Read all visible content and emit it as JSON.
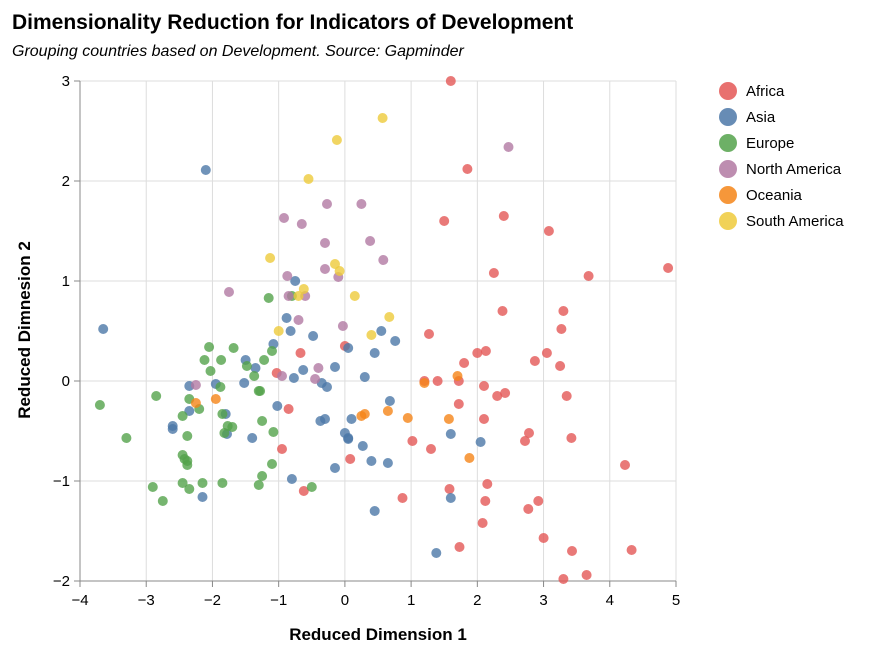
{
  "chart_data": {
    "type": "scatter",
    "title": "Dimensionality Reduction for Indicators of Development",
    "subtitle": "Grouping countries based on Development. Source: Gapminder",
    "xlabel": "Reduced Dimension 1",
    "ylabel": "Reduced Dimnesion 2",
    "xlim": [
      -4,
      5
    ],
    "ylim": [
      -2,
      3
    ],
    "x_ticks": [
      -4,
      -3,
      -2,
      -1,
      0,
      1,
      2,
      3,
      4,
      5
    ],
    "y_ticks": [
      -2,
      -1,
      0,
      1,
      2,
      3
    ],
    "x_tick_labels": [
      "−4",
      "−3",
      "−2",
      "−1",
      "0",
      "1",
      "2",
      "3",
      "4",
      "5"
    ],
    "y_tick_labels": [
      "−2",
      "−1",
      "0",
      "1",
      "2",
      "3"
    ],
    "grid": true,
    "legend_position": "top-right",
    "series": [
      {
        "name": "Africa",
        "color": "#e45756",
        "points": [
          [
            1.6,
            3.0
          ],
          [
            1.85,
            2.12
          ],
          [
            1.5,
            1.6
          ],
          [
            2.4,
            1.65
          ],
          [
            3.08,
            1.5
          ],
          [
            2.25,
            1.08
          ],
          [
            4.88,
            1.13
          ],
          [
            3.68,
            1.05
          ],
          [
            2.38,
            0.7
          ],
          [
            3.3,
            0.7
          ],
          [
            3.27,
            0.52
          ],
          [
            1.27,
            0.47
          ],
          [
            3.05,
            0.28
          ],
          [
            2.13,
            0.3
          ],
          [
            2.0,
            0.28
          ],
          [
            2.87,
            0.2
          ],
          [
            1.8,
            0.18
          ],
          [
            3.25,
            0.15
          ],
          [
            1.72,
            0.0
          ],
          [
            1.4,
            0.0
          ],
          [
            1.2,
            0.0
          ],
          [
            2.1,
            -0.05
          ],
          [
            2.42,
            -0.12
          ],
          [
            3.35,
            -0.15
          ],
          [
            2.3,
            -0.15
          ],
          [
            1.72,
            -0.23
          ],
          [
            2.1,
            -0.38
          ],
          [
            2.78,
            -0.52
          ],
          [
            2.72,
            -0.6
          ],
          [
            3.42,
            -0.57
          ],
          [
            1.02,
            -0.6
          ],
          [
            1.3,
            -0.68
          ],
          [
            4.23,
            -0.84
          ],
          [
            2.15,
            -1.03
          ],
          [
            1.58,
            -1.08
          ],
          [
            0.87,
            -1.17
          ],
          [
            2.12,
            -1.2
          ],
          [
            2.92,
            -1.2
          ],
          [
            2.77,
            -1.28
          ],
          [
            2.08,
            -1.42
          ],
          [
            3.0,
            -1.57
          ],
          [
            1.73,
            -1.66
          ],
          [
            3.43,
            -1.7
          ],
          [
            4.33,
            -1.69
          ],
          [
            3.65,
            -1.94
          ],
          [
            3.3,
            -1.98
          ],
          [
            0.0,
            0.35
          ],
          [
            -0.67,
            0.28
          ],
          [
            -1.03,
            0.08
          ],
          [
            -0.85,
            -0.28
          ],
          [
            -0.95,
            -0.68
          ],
          [
            0.08,
            -0.78
          ],
          [
            -0.62,
            -1.1
          ]
        ]
      },
      {
        "name": "Asia",
        "color": "#4c78a8",
        "points": [
          [
            -2.1,
            2.11
          ],
          [
            -3.65,
            0.52
          ],
          [
            -0.75,
            1.0
          ],
          [
            -0.88,
            0.63
          ],
          [
            -0.82,
            0.5
          ],
          [
            -1.08,
            0.37
          ],
          [
            0.05,
            0.33
          ],
          [
            0.55,
            0.5
          ],
          [
            0.76,
            0.4
          ],
          [
            0.45,
            0.28
          ],
          [
            -1.5,
            0.21
          ],
          [
            -1.35,
            0.13
          ],
          [
            -0.15,
            0.14
          ],
          [
            -0.63,
            0.11
          ],
          [
            0.3,
            0.04
          ],
          [
            -0.77,
            0.03
          ],
          [
            -0.35,
            -0.02
          ],
          [
            -1.95,
            -0.03
          ],
          [
            -2.35,
            -0.05
          ],
          [
            -1.52,
            -0.02
          ],
          [
            -0.27,
            -0.06
          ],
          [
            0.68,
            -0.2
          ],
          [
            -1.8,
            -0.33
          ],
          [
            -1.02,
            -0.25
          ],
          [
            -2.35,
            -0.3
          ],
          [
            0.1,
            -0.38
          ],
          [
            -0.3,
            -0.38
          ],
          [
            -0.37,
            -0.4
          ],
          [
            -2.6,
            -0.45
          ],
          [
            -2.6,
            -0.48
          ],
          [
            1.6,
            -0.53
          ],
          [
            0.0,
            -0.52
          ],
          [
            0.05,
            -0.57
          ],
          [
            2.05,
            -0.61
          ],
          [
            0.27,
            -0.65
          ],
          [
            -1.78,
            -0.53
          ],
          [
            0.05,
            -0.58
          ],
          [
            -1.4,
            -0.57
          ],
          [
            0.4,
            -0.8
          ],
          [
            0.65,
            -0.82
          ],
          [
            -0.15,
            -0.87
          ],
          [
            -0.8,
            -0.98
          ],
          [
            1.6,
            -1.17
          ],
          [
            -2.15,
            -1.16
          ],
          [
            0.45,
            -1.3
          ],
          [
            1.38,
            -1.72
          ],
          [
            -0.48,
            0.45
          ]
        ]
      },
      {
        "name": "Europe",
        "color": "#54a24b",
        "points": [
          [
            -2.05,
            0.34
          ],
          [
            -1.1,
            0.3
          ],
          [
            -1.15,
            0.83
          ],
          [
            -0.8,
            0.85
          ],
          [
            -2.12,
            0.21
          ],
          [
            -1.87,
            0.21
          ],
          [
            -1.68,
            0.33
          ],
          [
            -1.22,
            0.21
          ],
          [
            -2.03,
            0.1
          ],
          [
            -1.48,
            0.15
          ],
          [
            -1.37,
            0.05
          ],
          [
            -3.7,
            -0.24
          ],
          [
            -2.85,
            -0.15
          ],
          [
            -2.35,
            -0.18
          ],
          [
            -1.88,
            -0.06
          ],
          [
            -1.28,
            -0.1
          ],
          [
            -1.3,
            -0.1
          ],
          [
            -2.2,
            -0.28
          ],
          [
            -2.45,
            -0.35
          ],
          [
            -1.85,
            -0.33
          ],
          [
            -2.38,
            -0.55
          ],
          [
            -1.77,
            -0.45
          ],
          [
            -1.7,
            -0.46
          ],
          [
            -1.82,
            -0.52
          ],
          [
            -1.25,
            -0.4
          ],
          [
            -1.08,
            -0.51
          ],
          [
            -3.3,
            -0.57
          ],
          [
            -2.45,
            -0.74
          ],
          [
            -2.38,
            -0.8
          ],
          [
            -2.38,
            -0.84
          ],
          [
            -2.42,
            -0.78
          ],
          [
            -1.1,
            -0.83
          ],
          [
            -1.25,
            -0.95
          ],
          [
            -2.15,
            -1.02
          ],
          [
            -1.85,
            -1.02
          ],
          [
            -2.45,
            -1.02
          ],
          [
            -2.35,
            -1.08
          ],
          [
            -1.3,
            -1.04
          ],
          [
            -2.9,
            -1.06
          ],
          [
            -2.75,
            -1.2
          ],
          [
            -0.5,
            -1.06
          ]
        ]
      },
      {
        "name": "North America",
        "color": "#b279a2",
        "points": [
          [
            2.47,
            2.34
          ],
          [
            -0.92,
            1.63
          ],
          [
            -0.27,
            1.77
          ],
          [
            0.25,
            1.77
          ],
          [
            -0.65,
            1.57
          ],
          [
            -0.3,
            1.38
          ],
          [
            0.38,
            1.4
          ],
          [
            0.58,
            1.21
          ],
          [
            -0.3,
            1.12
          ],
          [
            -0.87,
            1.05
          ],
          [
            -0.1,
            1.04
          ],
          [
            -1.75,
            0.89
          ],
          [
            -0.85,
            0.85
          ],
          [
            -0.6,
            0.85
          ],
          [
            -0.7,
            0.61
          ],
          [
            -0.03,
            0.55
          ],
          [
            -0.4,
            0.13
          ],
          [
            -0.45,
            0.02
          ],
          [
            -2.25,
            -0.04
          ],
          [
            -0.95,
            0.05
          ]
        ]
      },
      {
        "name": "Oceania",
        "color": "#f58518",
        "points": [
          [
            1.7,
            0.05
          ],
          [
            1.2,
            -0.02
          ],
          [
            1.57,
            -0.38
          ],
          [
            0.95,
            -0.37
          ],
          [
            0.3,
            -0.33
          ],
          [
            0.25,
            -0.35
          ],
          [
            0.65,
            -0.3
          ],
          [
            -1.95,
            -0.18
          ],
          [
            -2.25,
            -0.22
          ],
          [
            1.88,
            -0.77
          ]
        ]
      },
      {
        "name": "South America",
        "color": "#eeca3b",
        "points": [
          [
            0.57,
            2.63
          ],
          [
            -0.12,
            2.41
          ],
          [
            -0.55,
            2.02
          ],
          [
            -1.13,
            1.23
          ],
          [
            -0.15,
            1.17
          ],
          [
            -0.08,
            1.1
          ],
          [
            -0.62,
            0.92
          ],
          [
            0.15,
            0.85
          ],
          [
            -0.7,
            0.85
          ],
          [
            0.67,
            0.64
          ],
          [
            -1.0,
            0.5
          ],
          [
            0.4,
            0.46
          ]
        ]
      }
    ]
  }
}
